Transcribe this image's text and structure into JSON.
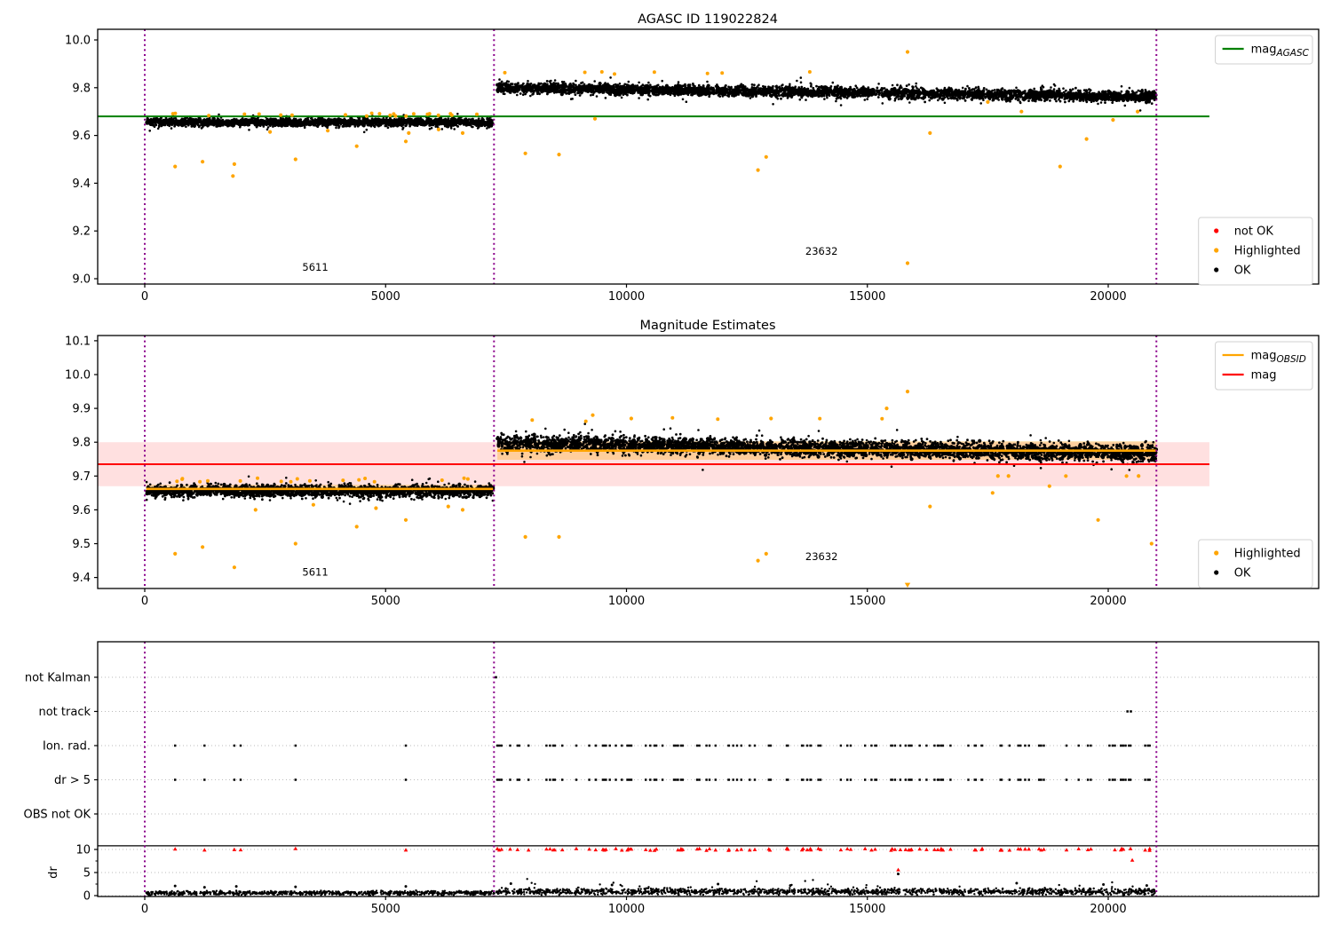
{
  "figure": {
    "background": "#ffffff"
  },
  "colors": {
    "ok": "#000000",
    "highlighted": "#ffa500",
    "not_ok": "#ff0000",
    "mag_agasc_line": "#008000",
    "mag_line": "#ff0000",
    "mag_band": "rgba(255,0,0,0.12)",
    "obsid_line": "#ffa500",
    "obsid_band": "rgba(255,165,0,0.30)",
    "vline": "#8b008b",
    "grid": "#bbbbbb",
    "spine": "#000000"
  },
  "chart_data": [
    {
      "type": "scatter",
      "title": "AGASC ID 119022824",
      "xlim": [
        -977,
        24373
      ],
      "ylim": [
        8.978,
        10.045
      ],
      "xticks": [
        0,
        5000,
        10000,
        15000,
        20000
      ],
      "yticks": [
        9.0,
        9.2,
        9.4,
        9.6,
        9.8,
        10.0
      ],
      "vlines": [
        0,
        7250,
        21000
      ],
      "hline": {
        "value": 9.68,
        "x0": -977,
        "x1": 22100,
        "color_key": "mag_agasc_line"
      },
      "bands": [
        {
          "x0": 30,
          "x1": 7230,
          "y_start": 9.655,
          "y_end": 9.655,
          "spread": 0.018,
          "n": 1500,
          "seed": 11
        },
        {
          "x0": 7320,
          "x1": 21000,
          "y_start": 9.8,
          "y_end": 9.762,
          "spread": 0.024,
          "n": 2600,
          "seed": 22
        }
      ],
      "band_top_sprinkle": [
        {
          "x0": 100,
          "x1": 7200,
          "y": 9.687,
          "n": 22,
          "seed": 31
        },
        {
          "x0": 7400,
          "x1": 15600,
          "y": 9.862,
          "n": 8,
          "seed": 32
        }
      ],
      "outliers_highlighted": [
        [
          630,
          9.47
        ],
        [
          1200,
          9.49
        ],
        [
          1860,
          9.48
        ],
        [
          1830,
          9.43
        ],
        [
          3130,
          9.5
        ],
        [
          4400,
          9.555
        ],
        [
          5420,
          9.575
        ],
        [
          5480,
          9.61
        ],
        [
          2600,
          9.615
        ],
        [
          3800,
          9.62
        ],
        [
          6100,
          9.625
        ],
        [
          6600,
          9.61
        ],
        [
          7900,
          9.525
        ],
        [
          8600,
          9.52
        ],
        [
          9345,
          9.67
        ],
        [
          12730,
          9.455
        ],
        [
          12900,
          9.51
        ],
        [
          15834,
          9.95
        ],
        [
          15834,
          9.065
        ],
        [
          16300,
          9.61
        ],
        [
          17500,
          9.74
        ],
        [
          18200,
          9.7
        ],
        [
          19000,
          9.47
        ],
        [
          19550,
          9.585
        ],
        [
          20100,
          9.665
        ],
        [
          20610,
          9.7
        ]
      ],
      "annotations": [
        {
          "text": "5611",
          "x": 3540,
          "y": 9.033
        },
        {
          "text": "23632",
          "x": 14050,
          "y": 9.1
        }
      ],
      "legend_top": {
        "items": [
          {
            "type": "line",
            "color_key": "mag_agasc_line",
            "label": "mag",
            "sub": "AGASC"
          }
        ]
      },
      "legend_bottom": {
        "items": [
          {
            "type": "dot",
            "color_key": "not_ok",
            "label": "not OK"
          },
          {
            "type": "dot",
            "color_key": "highlighted",
            "label": "Highlighted"
          },
          {
            "type": "dot",
            "color_key": "ok",
            "label": "OK"
          }
        ]
      }
    },
    {
      "type": "scatter",
      "title": "Magnitude Estimates",
      "xlim": [
        -977,
        24373
      ],
      "ylim": [
        9.3675,
        10.115
      ],
      "xticks": [
        0,
        5000,
        10000,
        15000,
        20000
      ],
      "yticks": [
        9.4,
        9.5,
        9.6,
        9.7,
        9.8,
        9.9,
        10.0,
        10.1
      ],
      "vlines": [
        0,
        7250,
        21000
      ],
      "hline": {
        "value": 9.735,
        "x0": -977,
        "x1": 22100,
        "band": [
          9.67,
          9.8
        ],
        "color_key": "mag_line",
        "band_key": "mag_band"
      },
      "obsid_segments": [
        {
          "x0": 30,
          "x1": 7230,
          "line": 9.662,
          "band": [
            9.65,
            9.674
          ]
        },
        {
          "x0": 7320,
          "x1": 21000,
          "line": 9.775,
          "band": [
            9.748,
            9.803
          ]
        }
      ],
      "bands": [
        {
          "x0": 30,
          "x1": 7230,
          "y_start": 9.656,
          "y_end": 9.656,
          "spread": 0.019,
          "n": 1500,
          "seed": 41
        },
        {
          "x0": 7320,
          "x1": 21000,
          "y_start": 9.798,
          "y_end": 9.766,
          "spread": 0.027,
          "n": 2600,
          "seed": 42
        }
      ],
      "band_top_sprinkle": [
        {
          "x0": 100,
          "x1": 7200,
          "y": 9.688,
          "n": 18,
          "seed": 51
        },
        {
          "x0": 7400,
          "x1": 15600,
          "y": 9.868,
          "n": 6,
          "seed": 52
        }
      ],
      "outliers_highlighted": [
        [
          630,
          9.47
        ],
        [
          1200,
          9.49
        ],
        [
          1860,
          9.43
        ],
        [
          3130,
          9.5
        ],
        [
          4400,
          9.55
        ],
        [
          5420,
          9.57
        ],
        [
          2300,
          9.6
        ],
        [
          3500,
          9.615
        ],
        [
          4800,
          9.605
        ],
        [
          6300,
          9.61
        ],
        [
          6600,
          9.6
        ],
        [
          7900,
          9.52
        ],
        [
          8600,
          9.52
        ],
        [
          12730,
          9.45
        ],
        [
          12900,
          9.47
        ],
        [
          15834,
          9.95
        ],
        [
          16300,
          9.61
        ],
        [
          17600,
          9.65
        ],
        [
          17710,
          9.7
        ],
        [
          17930,
          9.7
        ],
        [
          18780,
          9.67
        ],
        [
          19120,
          9.7
        ],
        [
          19790,
          9.57
        ],
        [
          20380,
          9.7
        ],
        [
          20630,
          9.7
        ],
        [
          20900,
          9.5
        ],
        [
          9300,
          9.88
        ],
        [
          10100,
          9.87
        ],
        [
          13000,
          9.87
        ],
        [
          15400,
          9.9
        ]
      ],
      "clipped_marker": {
        "x": 15834,
        "y": 9.378
      },
      "annotations": [
        {
          "text": "5611",
          "x": 3540,
          "y": 9.405
        },
        {
          "text": "23632",
          "x": 14050,
          "y": 9.452
        }
      ],
      "legend_top": {
        "items": [
          {
            "type": "line",
            "color_key": "obsid_line",
            "label": "mag",
            "sub": "OBSID"
          },
          {
            "type": "line",
            "color_key": "mag_line",
            "label": "mag"
          }
        ]
      },
      "legend_bottom": {
        "items": [
          {
            "type": "dot",
            "color_key": "highlighted",
            "label": "Highlighted"
          },
          {
            "type": "dot",
            "color_key": "ok",
            "label": "OK"
          }
        ]
      }
    },
    {
      "type": "flags",
      "rows": [
        "not Kalman",
        "not track",
        "Ion. rad.",
        "dr > 5",
        "OBS not OK"
      ],
      "dr_ticks": [
        10,
        5,
        0
      ],
      "dr_axis_label": "dr",
      "xticks": [
        0,
        5000,
        10000,
        15000,
        20000
      ],
      "vlines": [
        0,
        7250,
        21000
      ],
      "hline_dr": 10.8,
      "flags_seg1_x": [
        630,
        1240,
        1860,
        1990,
        3130,
        5420
      ],
      "flag_rows_with_data": [
        "Ion. rad.",
        "dr > 5"
      ],
      "seg2_cluster": {
        "x0": 7320,
        "x1": 20950,
        "n": 125,
        "seed": 61
      },
      "not_kalman_x": [
        7290
      ],
      "not_track_x": [
        20400,
        20470
      ],
      "red_dr_value": 10,
      "dr_band": {
        "x0": 30,
        "x1": 21000,
        "n": 2200,
        "amp1": 0.5,
        "amp2": 0.8,
        "seed": 71
      },
      "dr_outliers_ok": [
        [
          630,
          2.1
        ],
        [
          1240,
          1.8
        ],
        [
          1900,
          2.0
        ],
        [
          3130,
          1.9
        ],
        [
          5420,
          2.0
        ],
        [
          7600,
          2.6
        ],
        [
          9700,
          2.3
        ],
        [
          11900,
          2.5
        ],
        [
          13400,
          2.2
        ],
        [
          15640,
          4.7
        ],
        [
          18100,
          2.7
        ],
        [
          19900,
          2.4
        ],
        [
          20800,
          2.2
        ]
      ],
      "dr_outliers_not_ok": [
        [
          15640,
          5.6
        ],
        [
          20500,
          7.7
        ]
      ]
    }
  ]
}
